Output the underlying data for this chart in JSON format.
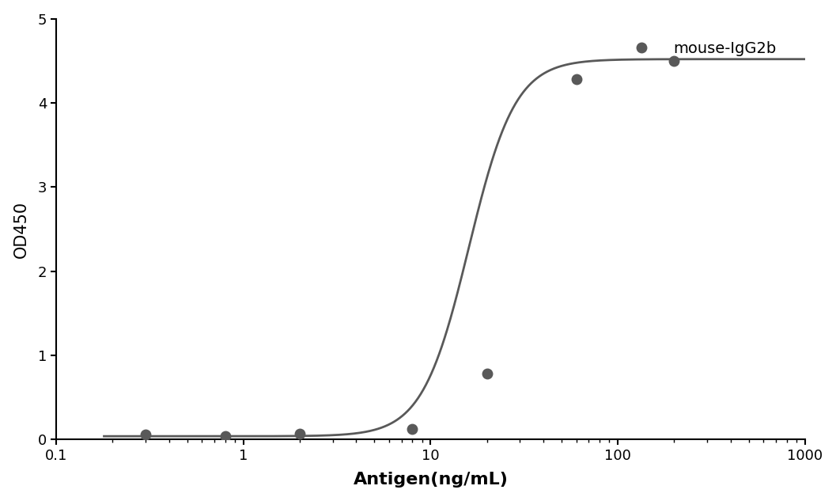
{
  "x_data": [
    0.3,
    0.8,
    2.0,
    8.0,
    20.0,
    60.0,
    200.0
  ],
  "y_data": [
    0.06,
    0.04,
    0.07,
    0.13,
    0.78,
    4.28,
    4.5
  ],
  "line_color": "#595959",
  "marker_color": "#595959",
  "marker_size": 9,
  "line_width": 2.0,
  "ylabel": "OD450",
  "xlabel": "Antigen(ng/mL)",
  "ylim": [
    0,
    5
  ],
  "xlim": [
    0.2,
    1000
  ],
  "yticks": [
    0,
    1,
    2,
    3,
    4,
    5
  ],
  "xticks": [
    0.1,
    1,
    10,
    100,
    1000
  ],
  "xticklabels": [
    "0.1",
    "1",
    "10",
    "100",
    "1000"
  ],
  "legend_label": "mouse-IgG2b",
  "background_color": "#ffffff",
  "ylabel_fontsize": 15,
  "xlabel_fontsize": 16,
  "tick_fontsize": 13,
  "legend_fontsize": 14,
  "ec50_override": 16.0,
  "hill_override": 3.5,
  "bottom_override": 0.04,
  "top_override": 4.52
}
